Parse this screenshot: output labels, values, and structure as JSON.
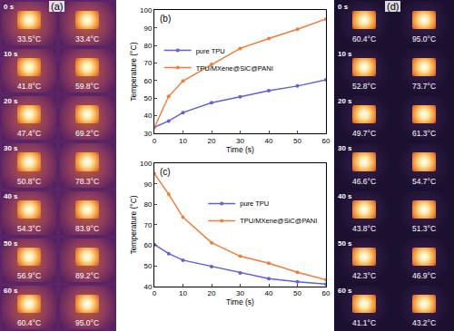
{
  "chart_data": [
    {
      "type": "line",
      "title": "(b)",
      "xlabel": "Time (s)",
      "ylabel": "Temperature (°C)",
      "x": [
        0,
        5,
        10,
        20,
        30,
        40,
        50,
        60
      ],
      "xlim": [
        0,
        60
      ],
      "xticks": [
        0,
        10,
        20,
        30,
        40,
        50,
        60
      ],
      "ylim": [
        30,
        100
      ],
      "yticks": [
        30,
        40,
        50,
        60,
        70,
        80,
        90,
        100
      ],
      "legend": "upper left",
      "marker": "circle",
      "series": [
        {
          "name": "pure TPU",
          "color": "#6060d8",
          "values": [
            33.5,
            37.0,
            41.8,
            47.4,
            50.8,
            54.3,
            56.9,
            60.4
          ]
        },
        {
          "name": "TPU/MXene@SiC@PANI",
          "color": "#f07d3a",
          "values": [
            33.4,
            51.0,
            59.8,
            69.2,
            78.3,
            83.9,
            89.2,
            95.0
          ]
        }
      ]
    },
    {
      "type": "line",
      "title": "(c)",
      "xlabel": "Time (s)",
      "ylabel": "Temperature (°C)",
      "x": [
        0,
        5,
        10,
        20,
        30,
        40,
        50,
        60
      ],
      "xlim": [
        0,
        60
      ],
      "xticks": [
        0,
        10,
        20,
        30,
        40,
        50,
        60
      ],
      "ylim": [
        40,
        100
      ],
      "yticks": [
        40,
        50,
        60,
        70,
        80,
        90,
        100
      ],
      "legend": "upper right",
      "marker": "circle",
      "series": [
        {
          "name": "pure TPU",
          "color": "#6060d8",
          "values": [
            60.4,
            56.0,
            52.8,
            49.7,
            46.6,
            43.8,
            42.3,
            41.1
          ]
        },
        {
          "name": "TPU/MXene@SiC@PANI",
          "color": "#f07d3a",
          "values": [
            95.0,
            85.0,
            73.7,
            61.3,
            54.7,
            51.3,
            46.9,
            43.2
          ]
        }
      ]
    }
  ],
  "thermal_images": [
    {
      "label": "(a)",
      "times": [
        "0 s",
        "10 s",
        "20 s",
        "30 s",
        "40 s",
        "50 s",
        "60 s"
      ],
      "columns": [
        [
          "33.5°C",
          "41.8°C",
          "47.4°C",
          "50.8°C",
          "54.3°C",
          "56.9°C",
          "60.4°C"
        ],
        [
          "33.4°C",
          "59.8°C",
          "69.2°C",
          "78.3°C",
          "83.9°C",
          "89.2°C",
          "95.0°C"
        ]
      ]
    },
    {
      "label": "(d)",
      "times": [
        "0 s",
        "10 s",
        "20 s",
        "30 s",
        "40 s",
        "50 s",
        "60 s"
      ],
      "columns": [
        [
          "60.4°C",
          "52.8°C",
          "49.7°C",
          "46.6°C",
          "43.8°C",
          "42.3°C",
          "41.1°C"
        ],
        [
          "95.0°C",
          "73.7°C",
          "61.3°C",
          "54.7°C",
          "51.3°C",
          "46.9°C",
          "43.2°C"
        ]
      ]
    }
  ]
}
